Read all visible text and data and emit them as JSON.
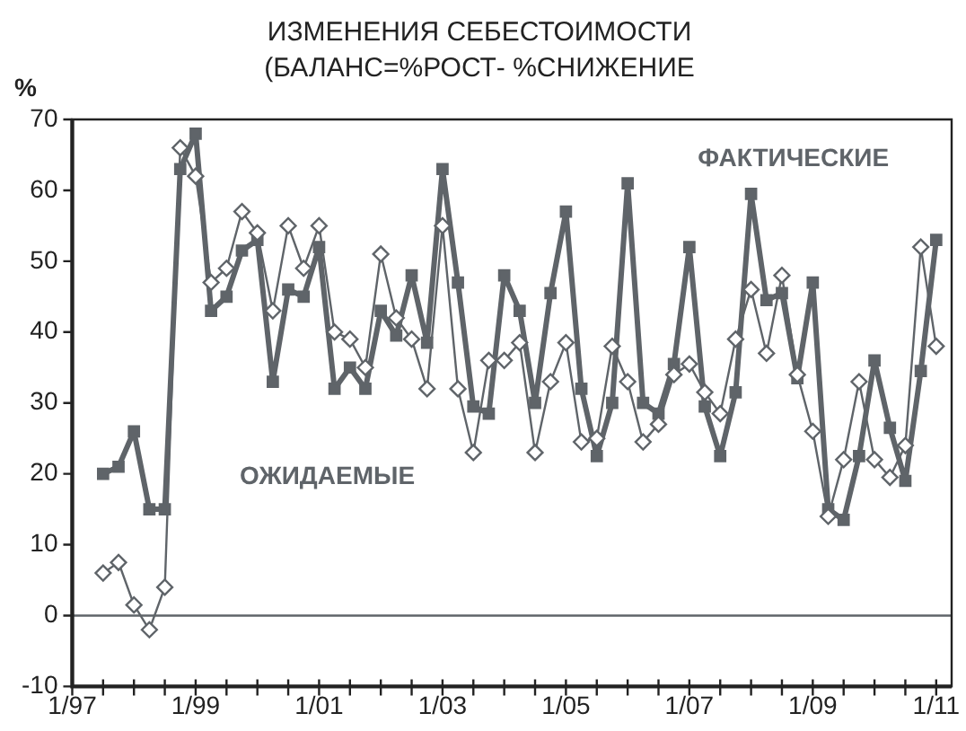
{
  "chart_data": {
    "type": "line",
    "title": "ИЗМЕНЕНИЯ СЕБЕСТОИМОСТИ",
    "subtitle": "(БАЛАНС=%РОСТ- %СНИЖЕНИЕ",
    "ylabel": "%",
    "x": [
      "1997-07",
      "1997-10",
      "1998-01",
      "1998-04",
      "1998-07",
      "1998-10",
      "1999-01",
      "1999-04",
      "1999-07",
      "1999-10",
      "2000-01",
      "2000-04",
      "2000-07",
      "2000-10",
      "2001-01",
      "2001-04",
      "2001-07",
      "2001-10",
      "2002-01",
      "2002-04",
      "2002-07",
      "2002-10",
      "2003-01",
      "2003-04",
      "2003-07",
      "2003-10",
      "2004-01",
      "2004-04",
      "2004-07",
      "2004-10",
      "2005-01",
      "2005-04",
      "2005-07",
      "2005-10",
      "2006-01",
      "2006-04",
      "2006-07",
      "2006-10",
      "2007-01",
      "2007-04",
      "2007-07",
      "2007-10",
      "2008-01",
      "2008-04",
      "2008-07",
      "2008-10",
      "2009-01",
      "2009-04",
      "2009-07",
      "2009-10",
      "2010-01",
      "2010-04",
      "2010-07",
      "2010-10",
      "2011-01"
    ],
    "series": [
      {
        "name": "ФАКТИЧЕСКИЕ",
        "color": "#5f6469",
        "marker": "square",
        "values": [
          20,
          21,
          26,
          15,
          15,
          63,
          68,
          43,
          45,
          51.5,
          53,
          33,
          46,
          45,
          52,
          32,
          35,
          32,
          43,
          39.5,
          48,
          38.5,
          63,
          47,
          29.5,
          28.5,
          48,
          43,
          30,
          45.5,
          57,
          32,
          22.5,
          30,
          61,
          30,
          28.5,
          35.5,
          52,
          29.5,
          22.5,
          31.5,
          59.5,
          44.5,
          45.5,
          33.5,
          47,
          15,
          13.5,
          22.5,
          36,
          26.5,
          19,
          34.5,
          53
        ]
      },
      {
        "name": "ОЖИДАЕМЫЕ",
        "color": "#5f6469",
        "marker": "diamond",
        "values": [
          6,
          7.5,
          1.5,
          -2,
          4,
          66,
          62,
          47,
          49,
          57,
          54,
          43,
          55,
          49,
          55,
          40,
          39,
          35,
          51,
          42,
          39,
          32,
          55,
          32,
          23,
          36,
          36,
          38.5,
          23,
          33,
          38.5,
          24.5,
          25,
          38,
          33,
          24.5,
          27,
          34,
          35.5,
          31.5,
          28.5,
          39,
          46,
          37,
          48,
          34,
          26,
          14,
          22,
          33,
          22,
          19.5,
          24,
          52,
          38
        ]
      }
    ],
    "xlim": [
      "1997-01",
      "2011-04"
    ],
    "xticks": [
      {
        "value": "1997-01",
        "label": "1/97"
      },
      {
        "value": "1997-07",
        "label": null
      },
      {
        "value": "1998-01",
        "label": null
      },
      {
        "value": "1998-07",
        "label": null
      },
      {
        "value": "1999-01",
        "label": "1/99"
      },
      {
        "value": "1999-07",
        "label": null
      },
      {
        "value": "2000-01",
        "label": null
      },
      {
        "value": "2000-07",
        "label": null
      },
      {
        "value": "2001-01",
        "label": "1/01"
      },
      {
        "value": "2001-07",
        "label": null
      },
      {
        "value": "2002-01",
        "label": null
      },
      {
        "value": "2002-07",
        "label": null
      },
      {
        "value": "2003-01",
        "label": "1/03"
      },
      {
        "value": "2003-07",
        "label": null
      },
      {
        "value": "2004-01",
        "label": null
      },
      {
        "value": "2004-07",
        "label": null
      },
      {
        "value": "2005-01",
        "label": "1/05"
      },
      {
        "value": "2005-07",
        "label": null
      },
      {
        "value": "2006-01",
        "label": null
      },
      {
        "value": "2006-07",
        "label": null
      },
      {
        "value": "2007-01",
        "label": "1/07"
      },
      {
        "value": "2007-07",
        "label": null
      },
      {
        "value": "2008-01",
        "label": null
      },
      {
        "value": "2008-07",
        "label": null
      },
      {
        "value": "2009-01",
        "label": "1/09"
      },
      {
        "value": "2009-07",
        "label": null
      },
      {
        "value": "2010-01",
        "label": null
      },
      {
        "value": "2010-07",
        "label": null
      },
      {
        "value": "2011-01",
        "label": "1/11"
      }
    ],
    "ylim": [
      -10,
      70
    ],
    "yticks": [
      -10,
      0,
      10,
      20,
      30,
      40,
      50,
      60,
      70
    ],
    "ref_lines": [
      {
        "axis": "y",
        "value": 0,
        "color": "#5f6469"
      }
    ],
    "grid": false,
    "legend": false
  }
}
